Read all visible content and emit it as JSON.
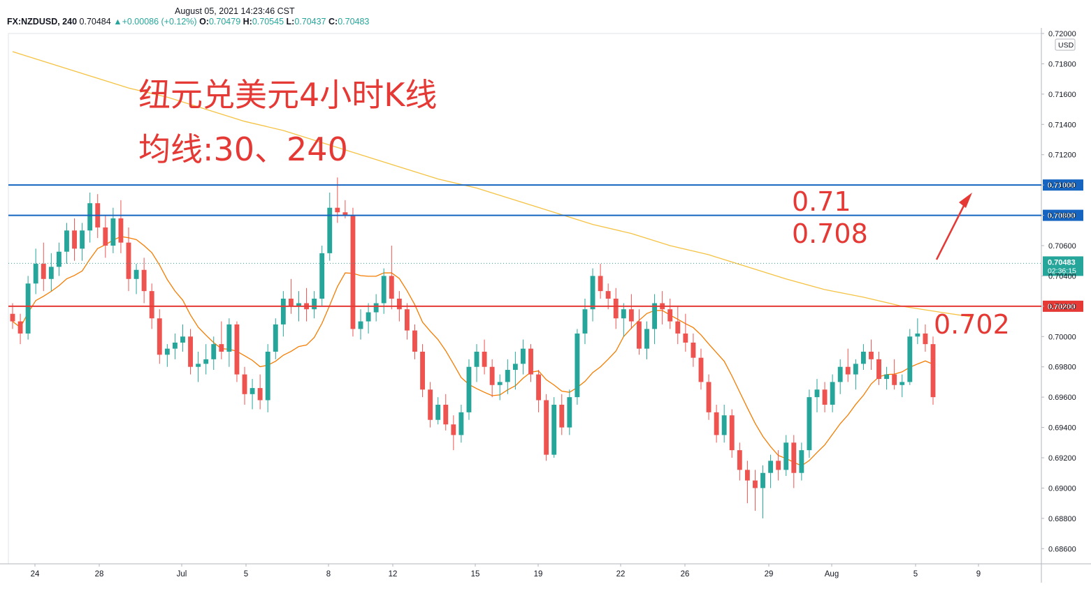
{
  "timestamp": "August 05, 2021 14:23:46 CST",
  "ohlc_bar": {
    "symbol": "FX:NZDUSD, 240",
    "last": "0.70484",
    "change": "+0.00086 (+0.12%)",
    "o_label": "O:",
    "o": "0.70479",
    "h_label": "H:",
    "h": "0.70545",
    "l_label": "L:",
    "l": "0.70437",
    "c_label": "C:",
    "c": "0.70483"
  },
  "colors": {
    "up": "#26a69a",
    "down": "#ef5350",
    "blue_line": "#1565c0",
    "red_line": "#e53935",
    "ma30": "#f57c00",
    "ma240": "#f5c242",
    "annotation": "#e53935"
  },
  "chart_data": {
    "type": "candlestick",
    "title": "纽元兑美元4小时K线",
    "subtitle": "均线:30、240",
    "currency": "USD",
    "ylim": [
      0.685,
      0.72
    ],
    "y_ticks": [
      "0.68600",
      "0.68800",
      "0.69000",
      "0.69200",
      "0.69400",
      "0.69600",
      "0.69800",
      "0.70000",
      "0.70200",
      "0.70400",
      "0.70600",
      "0.70800",
      "0.71000",
      "0.71200",
      "0.71400",
      "0.71600",
      "0.71800",
      "0.72000"
    ],
    "x_ticks": [
      "24",
      "28",
      "Jul",
      "5",
      "8",
      "12",
      "15",
      "19",
      "22",
      "26",
      "29",
      "Aug",
      "5",
      "9"
    ],
    "last_price": "0.70483",
    "countdown": "02:36:15",
    "levels": [
      {
        "value": 0.71,
        "label": "0.71000",
        "color": "blue"
      },
      {
        "value": 0.708,
        "label": "0.70800",
        "color": "blue"
      },
      {
        "value": 0.702,
        "label": "0.70200",
        "color": "red"
      }
    ],
    "annotations": [
      "0.71",
      "0.708",
      "0.702"
    ],
    "ma240": [
      [
        0,
        0.7188
      ],
      [
        5,
        0.718
      ],
      [
        10,
        0.7172
      ],
      [
        15,
        0.7164
      ],
      [
        20,
        0.7158
      ],
      [
        25,
        0.715
      ],
      [
        30,
        0.7142
      ],
      [
        35,
        0.7136
      ],
      [
        40,
        0.7128
      ],
      [
        45,
        0.712
      ],
      [
        50,
        0.7112
      ],
      [
        55,
        0.7104
      ],
      [
        60,
        0.7098
      ],
      [
        65,
        0.709
      ],
      [
        70,
        0.7082
      ],
      [
        75,
        0.7074
      ],
      [
        80,
        0.7068
      ],
      [
        85,
        0.706
      ],
      [
        90,
        0.7054
      ],
      [
        95,
        0.7046
      ],
      [
        100,
        0.7038
      ],
      [
        105,
        0.7031
      ],
      [
        110,
        0.7026
      ],
      [
        115,
        0.702
      ],
      [
        120,
        0.7016
      ],
      [
        124,
        0.7013
      ]
    ],
    "candles": [
      [
        0.7015,
        0.7022,
        0.7005,
        0.701
      ],
      [
        0.701,
        0.7015,
        0.6995,
        0.7002
      ],
      [
        0.7002,
        0.704,
        0.6998,
        0.7035
      ],
      [
        0.7035,
        0.7058,
        0.7028,
        0.7048
      ],
      [
        0.7048,
        0.7062,
        0.703,
        0.7038
      ],
      [
        0.7038,
        0.7055,
        0.703,
        0.7046
      ],
      [
        0.7046,
        0.7062,
        0.704,
        0.7056
      ],
      [
        0.7056,
        0.7075,
        0.7048,
        0.707
      ],
      [
        0.707,
        0.7078,
        0.705,
        0.7058
      ],
      [
        0.7058,
        0.7075,
        0.705,
        0.707
      ],
      [
        0.707,
        0.7095,
        0.7062,
        0.7088
      ],
      [
        0.7088,
        0.7094,
        0.7065,
        0.7072
      ],
      [
        0.7072,
        0.708,
        0.7052,
        0.706
      ],
      [
        0.706,
        0.7085,
        0.7055,
        0.7078
      ],
      [
        0.7078,
        0.709,
        0.7055,
        0.7062
      ],
      [
        0.7062,
        0.7072,
        0.703,
        0.7038
      ],
      [
        0.7038,
        0.7048,
        0.7028,
        0.7044
      ],
      [
        0.7044,
        0.7052,
        0.7022,
        0.703
      ],
      [
        0.703,
        0.7035,
        0.7005,
        0.7012
      ],
      [
        0.7012,
        0.7018,
        0.6982,
        0.6988
      ],
      [
        0.6988,
        0.6995,
        0.698,
        0.6992
      ],
      [
        0.6992,
        0.7002,
        0.6985,
        0.6996
      ],
      [
        0.6996,
        0.7008,
        0.699,
        0.7
      ],
      [
        0.7,
        0.7005,
        0.6975,
        0.698
      ],
      [
        0.698,
        0.699,
        0.697,
        0.6982
      ],
      [
        0.6982,
        0.6995,
        0.6975,
        0.6985
      ],
      [
        0.6985,
        0.7,
        0.6978,
        0.6995
      ],
      [
        0.6995,
        0.701,
        0.6985,
        0.699
      ],
      [
        0.699,
        0.7012,
        0.698,
        0.7008
      ],
      [
        0.7008,
        0.701,
        0.697,
        0.6975
      ],
      [
        0.6975,
        0.698,
        0.6955,
        0.6962
      ],
      [
        0.6962,
        0.6972,
        0.6952,
        0.6966
      ],
      [
        0.6966,
        0.6975,
        0.6952,
        0.6958
      ],
      [
        0.6958,
        0.6995,
        0.695,
        0.699
      ],
      [
        0.699,
        0.7012,
        0.6985,
        0.7008
      ],
      [
        0.7008,
        0.703,
        0.7,
        0.7025
      ],
      [
        0.7025,
        0.7038,
        0.7015,
        0.702
      ],
      [
        0.702,
        0.703,
        0.701,
        0.7022
      ],
      [
        0.7022,
        0.7032,
        0.701,
        0.7018
      ],
      [
        0.7018,
        0.703,
        0.7012,
        0.7025
      ],
      [
        0.7025,
        0.706,
        0.702,
        0.7055
      ],
      [
        0.7055,
        0.7095,
        0.705,
        0.7085
      ],
      [
        0.7085,
        0.7105,
        0.7075,
        0.7082
      ],
      [
        0.7082,
        0.709,
        0.7078,
        0.708
      ],
      [
        0.708,
        0.7085,
        0.7,
        0.7005
      ],
      [
        0.7005,
        0.7018,
        0.6998,
        0.701
      ],
      [
        0.701,
        0.7022,
        0.7002,
        0.7016
      ],
      [
        0.7016,
        0.7028,
        0.701,
        0.7022
      ],
      [
        0.7022,
        0.7045,
        0.7015,
        0.704
      ],
      [
        0.704,
        0.706,
        0.7018,
        0.7025
      ],
      [
        0.7025,
        0.703,
        0.701,
        0.7018
      ],
      [
        0.7018,
        0.7022,
        0.6998,
        0.7004
      ],
      [
        0.7004,
        0.7008,
        0.6985,
        0.699
      ],
      [
        0.699,
        0.6995,
        0.696,
        0.6965
      ],
      [
        0.6965,
        0.697,
        0.694,
        0.6945
      ],
      [
        0.6945,
        0.696,
        0.6942,
        0.6955
      ],
      [
        0.6955,
        0.6962,
        0.6938,
        0.6942
      ],
      [
        0.6942,
        0.6948,
        0.6925,
        0.6935
      ],
      [
        0.6935,
        0.6955,
        0.693,
        0.695
      ],
      [
        0.695,
        0.6985,
        0.6945,
        0.698
      ],
      [
        0.698,
        0.6995,
        0.697,
        0.699
      ],
      [
        0.699,
        0.6998,
        0.6975,
        0.698
      ],
      [
        0.698,
        0.6985,
        0.696,
        0.6968
      ],
      [
        0.6968,
        0.6975,
        0.6958,
        0.697
      ],
      [
        0.697,
        0.6985,
        0.6962,
        0.6978
      ],
      [
        0.6978,
        0.699,
        0.6965,
        0.6982
      ],
      [
        0.6982,
        0.6998,
        0.6975,
        0.6992
      ],
      [
        0.6992,
        0.6995,
        0.697,
        0.6975
      ],
      [
        0.6975,
        0.6978,
        0.695,
        0.6958
      ],
      [
        0.6958,
        0.6962,
        0.6918,
        0.6922
      ],
      [
        0.6922,
        0.696,
        0.692,
        0.6955
      ],
      [
        0.6955,
        0.6962,
        0.6935,
        0.694
      ],
      [
        0.694,
        0.6965,
        0.6935,
        0.696
      ],
      [
        0.696,
        0.7005,
        0.6955,
        0.7002
      ],
      [
        0.7002,
        0.7025,
        0.6995,
        0.7018
      ],
      [
        0.7018,
        0.7045,
        0.701,
        0.704
      ],
      [
        0.704,
        0.7048,
        0.7025,
        0.703
      ],
      [
        0.703,
        0.7035,
        0.7018,
        0.7025
      ],
      [
        0.7025,
        0.7032,
        0.7005,
        0.7012
      ],
      [
        0.7012,
        0.7022,
        0.7,
        0.7018
      ],
      [
        0.7018,
        0.7028,
        0.7005,
        0.701
      ],
      [
        0.701,
        0.7018,
        0.6988,
        0.6992
      ],
      [
        0.6992,
        0.701,
        0.6985,
        0.7005
      ],
      [
        0.7005,
        0.7028,
        0.6995,
        0.7022
      ],
      [
        0.7022,
        0.703,
        0.7008,
        0.7018
      ],
      [
        0.7018,
        0.7025,
        0.7005,
        0.701
      ],
      [
        0.701,
        0.702,
        0.6995,
        0.7002
      ],
      [
        0.7002,
        0.7015,
        0.699,
        0.6996
      ],
      [
        0.6996,
        0.7002,
        0.698,
        0.6986
      ],
      [
        0.6986,
        0.6992,
        0.6965,
        0.697
      ],
      [
        0.697,
        0.6975,
        0.6945,
        0.695
      ],
      [
        0.695,
        0.6955,
        0.693,
        0.6935
      ],
      [
        0.6935,
        0.6955,
        0.693,
        0.6948
      ],
      [
        0.6948,
        0.6952,
        0.692,
        0.6925
      ],
      [
        0.6925,
        0.693,
        0.6905,
        0.6912
      ],
      [
        0.6912,
        0.6918,
        0.689,
        0.6905
      ],
      [
        0.6905,
        0.6912,
        0.6885,
        0.69
      ],
      [
        0.69,
        0.6915,
        0.688,
        0.691
      ],
      [
        0.691,
        0.6922,
        0.69,
        0.6918
      ],
      [
        0.6918,
        0.6925,
        0.6905,
        0.6912
      ],
      [
        0.6912,
        0.6935,
        0.6908,
        0.693
      ],
      [
        0.693,
        0.6935,
        0.69,
        0.691
      ],
      [
        0.691,
        0.693,
        0.6905,
        0.6925
      ],
      [
        0.6925,
        0.6965,
        0.692,
        0.696
      ],
      [
        0.696,
        0.6972,
        0.695,
        0.6965
      ],
      [
        0.6965,
        0.697,
        0.695,
        0.6955
      ],
      [
        0.6955,
        0.6975,
        0.695,
        0.697
      ],
      [
        0.697,
        0.6985,
        0.6962,
        0.698
      ],
      [
        0.698,
        0.6992,
        0.697,
        0.6975
      ],
      [
        0.6975,
        0.6985,
        0.6965,
        0.6982
      ],
      [
        0.6982,
        0.6995,
        0.6978,
        0.699
      ],
      [
        0.699,
        0.6998,
        0.6978,
        0.6985
      ],
      [
        0.6985,
        0.699,
        0.6968,
        0.6972
      ],
      [
        0.6972,
        0.698,
        0.6965,
        0.6975
      ],
      [
        0.6975,
        0.6985,
        0.6965,
        0.6968
      ],
      [
        0.6968,
        0.6975,
        0.696,
        0.697
      ],
      [
        0.697,
        0.7005,
        0.6968,
        0.7
      ],
      [
        0.7,
        0.7012,
        0.6995,
        0.7002
      ],
      [
        0.7002,
        0.7008,
        0.699,
        0.6995
      ],
      [
        0.6995,
        0.7,
        0.6955,
        0.696
      ]
    ]
  }
}
